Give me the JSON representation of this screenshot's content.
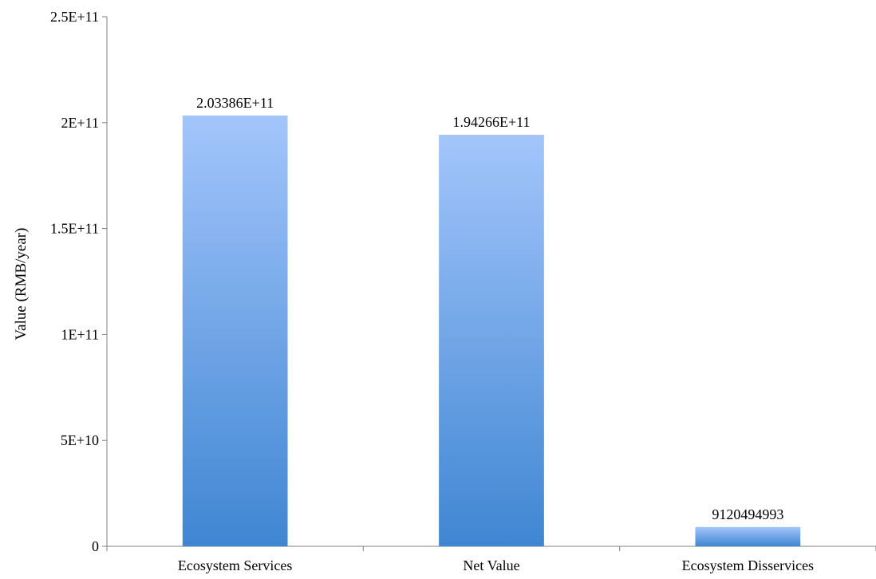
{
  "chart_data": {
    "type": "bar",
    "title": "",
    "xlabel": "",
    "ylabel": "Value (RMB/year)",
    "ylim": [
      0,
      250000000000
    ],
    "y_ticks": [
      0,
      50000000000,
      100000000000,
      150000000000,
      200000000000,
      250000000000
    ],
    "y_tick_labels": [
      "0",
      "5E+10",
      "1E+11",
      "1.5E+11",
      "2E+11",
      "2.5E+11"
    ],
    "categories": [
      "Ecosystem Services",
      "Net Value",
      "Ecosystem Disservices"
    ],
    "values": [
      203386000000,
      194266000000,
      9120494993
    ],
    "data_labels": [
      "2.03386E+11",
      "1.94266E+11",
      "9120494993"
    ],
    "grid": false,
    "legend": "none",
    "colors": {
      "bar_top": "#a3c5fb",
      "bar_bottom": "#3f86d2",
      "axis": "#808080",
      "text": "#000000"
    }
  }
}
